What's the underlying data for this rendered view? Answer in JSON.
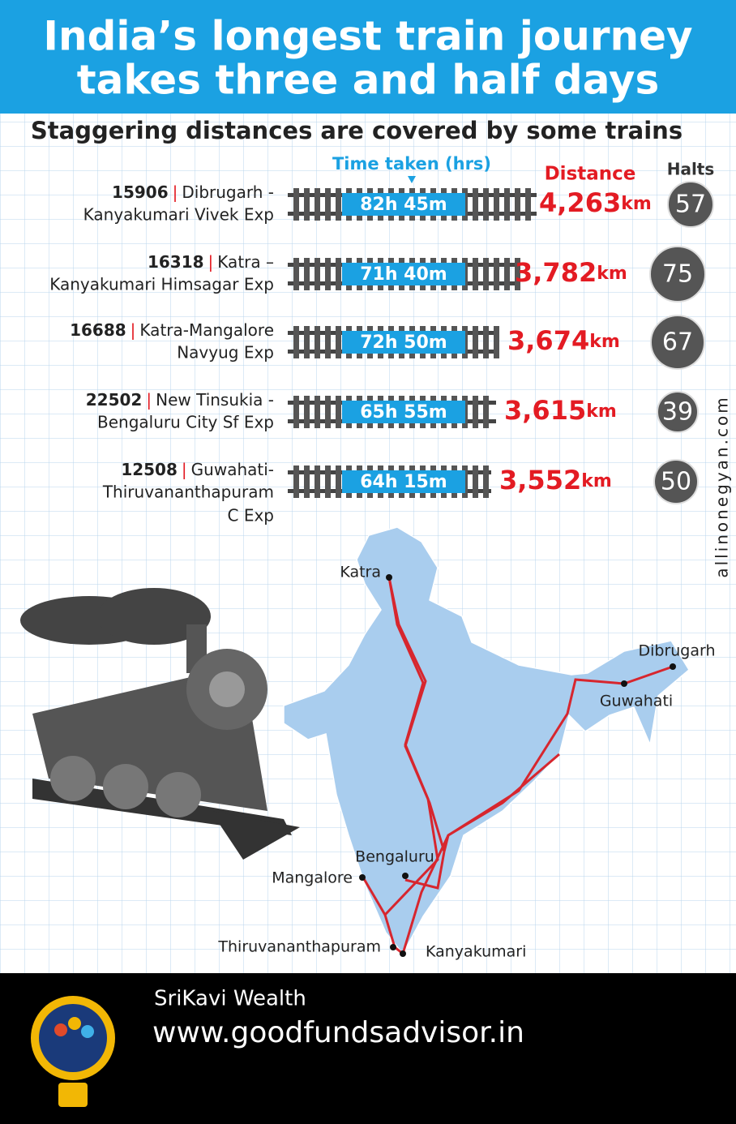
{
  "header": {
    "title_lines": [
      "India’s longest train journey",
      "takes three and half days"
    ]
  },
  "subtitle": "Staggering distances are covered by some trains",
  "columns": {
    "time": "Time taken (hrs)",
    "distance": "Distance",
    "halts": "Halts"
  },
  "table": {
    "separator": "|",
    "rows": [
      {
        "number": "15906",
        "name_lines": [
          "Dibrugarh -",
          "Kanyakumari Vivek Exp"
        ],
        "time": "82h 45m",
        "distance": "4,263",
        "unit": "km",
        "halts": 57
      },
      {
        "number": "16318",
        "name_lines": [
          "Katra –",
          "Kanyakumari Himsagar Exp"
        ],
        "time": "71h 40m",
        "distance": "3,782",
        "unit": "km",
        "halts": 75
      },
      {
        "number": "16688",
        "name_lines": [
          "Katra-Mangalore",
          "Navyug Exp"
        ],
        "time": "72h 50m",
        "distance": "3,674",
        "unit": "km",
        "halts": 67
      },
      {
        "number": "22502",
        "name_lines": [
          "New Tinsukia -",
          "Bengaluru City Sf Exp"
        ],
        "time": "65h 55m",
        "distance": "3,615",
        "unit": "km",
        "halts": 39
      },
      {
        "number": "12508",
        "name_lines": [
          "Guwahati-",
          "Thiruvananthapuram",
          "C Exp"
        ],
        "time": "64h 15m",
        "distance": "3,552",
        "unit": "km",
        "halts": 50
      }
    ]
  },
  "map": {
    "cities": [
      "Katra",
      "Dibrugarh",
      "Guwahati",
      "Bengaluru",
      "Mangalore",
      "Thiruvananthapuram",
      "Kanyakumari"
    ]
  },
  "watermark": "allinonegyan.com",
  "footer": {
    "brand": "SriKavi Wealth",
    "url": "www.goodfundsadvisor.in"
  }
}
